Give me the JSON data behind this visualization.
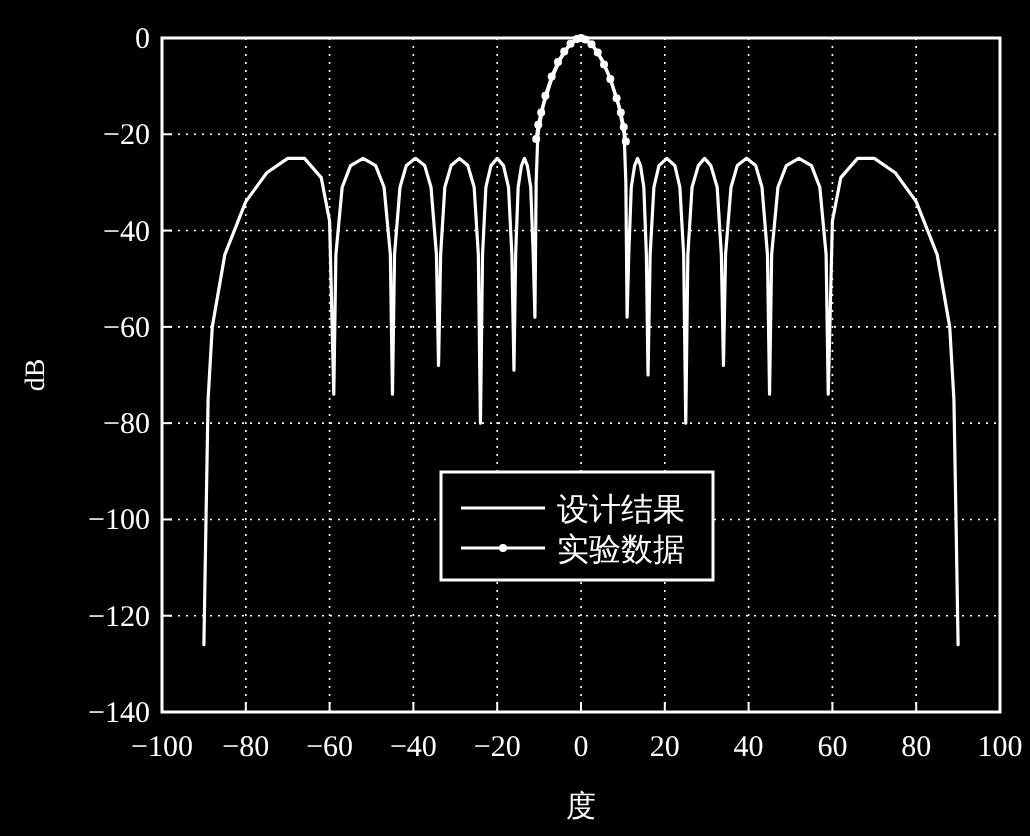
{
  "chart_data": {
    "type": "line",
    "xlabel": "度",
    "ylabel": "dB",
    "xlim": [
      -100,
      100
    ],
    "ylim": [
      -140,
      0
    ],
    "xticks": [
      -100,
      -80,
      -60,
      -40,
      -20,
      0,
      20,
      40,
      60,
      80,
      100
    ],
    "yticks": [
      -140,
      -120,
      -100,
      -80,
      -60,
      -40,
      -20,
      0
    ],
    "grid": true,
    "legend": "bottom",
    "line_style": "solid",
    "series": [
      {
        "name": "设计结果",
        "color": "#ffffff",
        "marker": "none",
        "x": [
          -90,
          -89.5,
          -89,
          -88,
          -85,
          -80,
          -75,
          -70,
          -66,
          -62,
          -60,
          -59,
          -58.5,
          -57,
          -55,
          -52,
          -49,
          -47,
          -45.5,
          -45,
          -44.5,
          -43.2,
          -41.7,
          -39.5,
          -37.3,
          -35.8,
          -34.5,
          -34,
          -33.5,
          -32.5,
          -31,
          -29,
          -27,
          -25.5,
          -24.5,
          -24,
          -23.5,
          -22.7,
          -21.5,
          -20,
          -18.5,
          -17.3,
          -16.5,
          -16,
          -15.6,
          -15,
          -14.2,
          -13.5,
          -12.8,
          -12,
          -11.4,
          -11,
          -10.7,
          -10.3,
          -9,
          -7,
          -5,
          -3,
          -1,
          0,
          1,
          3,
          5,
          7,
          9,
          10.3,
          10.7,
          11,
          11.4,
          12,
          12.8,
          13.5,
          14.2,
          15,
          15.6,
          16,
          16.5,
          17.4,
          18.6,
          20.5,
          22.4,
          23.6,
          24.5,
          25,
          25.5,
          26.5,
          28,
          29.5,
          31,
          32.5,
          33.5,
          34,
          34.5,
          35.8,
          37.3,
          39.5,
          41.7,
          43.2,
          44.5,
          45,
          45.5,
          47,
          49,
          52,
          55,
          57,
          58.5,
          59,
          60,
          62,
          66,
          70,
          75,
          80,
          85,
          88,
          89,
          89.5,
          90
        ],
        "values": [
          -126,
          -100,
          -75,
          -60,
          -45,
          -34,
          -28,
          -25,
          -25,
          -29,
          -38,
          -74,
          -45,
          -31,
          -26.5,
          -25,
          -26.5,
          -31,
          -45,
          -74,
          -45,
          -31,
          -26.5,
          -25,
          -26.5,
          -31,
          -45,
          -68,
          -45,
          -31,
          -26.5,
          -25,
          -26.5,
          -31,
          -45,
          -80,
          -45,
          -31,
          -26.5,
          -25,
          -26.5,
          -31,
          -45,
          -69,
          -45,
          -31,
          -26.5,
          -25,
          -26.5,
          -31,
          -45,
          -58,
          -30,
          -20,
          -14,
          -8.5,
          -4.5,
          -1.8,
          -0.2,
          0,
          -0.2,
          -1.8,
          -4.5,
          -8.5,
          -14,
          -20,
          -30,
          -58,
          -45,
          -31,
          -26.5,
          -25,
          -26.5,
          -31,
          -45,
          -70,
          -45,
          -31,
          -26.5,
          -25,
          -26.5,
          -31,
          -45,
          -80,
          -45,
          -31,
          -26.5,
          -25,
          -26.5,
          -31,
          -45,
          -68,
          -45,
          -31,
          -26.5,
          -25,
          -26.5,
          -31,
          -45,
          -74,
          -45,
          -31,
          -26.5,
          -25,
          -26.5,
          -31,
          -45,
          -74,
          -38,
          -29,
          -25,
          -25,
          -28,
          -34,
          -45,
          -60,
          -75,
          -100,
          -126
        ]
      },
      {
        "name": "实验数据",
        "color": "#ffffff",
        "marker": "circle",
        "x": [
          -10.7,
          -10.2,
          -9.5,
          -8.5,
          -7,
          -5.5,
          -4,
          -2.5,
          -1,
          0,
          1,
          2.5,
          4,
          5.5,
          7,
          8.5,
          9.5,
          10.2,
          10.7
        ],
        "values": [
          -21,
          -18,
          -15.5,
          -12,
          -8,
          -5,
          -2.8,
          -1.2,
          -0.2,
          0,
          -0.3,
          -1.3,
          -3,
          -5.5,
          -8.5,
          -12.5,
          -15.5,
          -18.5,
          -21.5
        ]
      }
    ]
  }
}
